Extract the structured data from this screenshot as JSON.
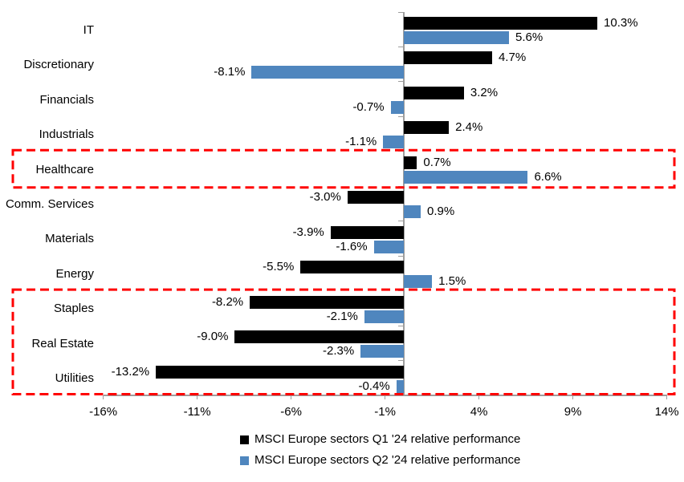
{
  "chart_data": {
    "type": "bar",
    "orientation": "horizontal",
    "title": "",
    "categories": [
      "IT",
      "Discretionary",
      "Financials",
      "Industrials",
      "Healthcare",
      "Comm. Services",
      "Materials",
      "Energy",
      "Staples",
      "Real Estate",
      "Utilities"
    ],
    "series": [
      {
        "name": "MSCI Europe sectors Q1 '24 relative performance",
        "color": "#000000",
        "values": [
          10.3,
          4.7,
          3.2,
          2.4,
          0.7,
          -3.0,
          -3.9,
          -5.5,
          -8.2,
          -9.0,
          -13.2
        ],
        "labels": [
          "10.3%",
          "4.7%",
          "3.2%",
          "2.4%",
          "0.7%",
          "-3.0%",
          "-3.9%",
          "-5.5%",
          "-8.2%",
          "-9.0%",
          "-13.2%"
        ]
      },
      {
        "name": "MSCI Europe sectors Q2 '24 relative performance",
        "color": "#4F86BE",
        "values": [
          5.6,
          -8.1,
          -0.7,
          -1.1,
          6.6,
          0.9,
          -1.6,
          1.5,
          -2.1,
          -2.3,
          -0.4
        ],
        "labels": [
          "5.6%",
          "-8.1%",
          "-0.7%",
          "-1.1%",
          "6.6%",
          "0.9%",
          "-1.6%",
          "1.5%",
          "-2.1%",
          "-2.3%",
          "-0.4%"
        ]
      }
    ],
    "x_axis": {
      "min": -16,
      "max": 14,
      "tick_values": [
        -16,
        -11,
        -6,
        -1,
        4,
        9,
        14
      ],
      "tick_labels": [
        "-16%",
        "-11%",
        "-6%",
        "-1%",
        "4%",
        "9%",
        "14%"
      ]
    },
    "grid": false,
    "legend_position": "bottom",
    "axis_color": "#9e9e9e",
    "highlight_color": "#FF0000",
    "highlights": [
      {
        "from_category": "Healthcare",
        "to_category": "Healthcare"
      },
      {
        "from_category": "Staples",
        "to_category": "Utilities"
      }
    ]
  }
}
